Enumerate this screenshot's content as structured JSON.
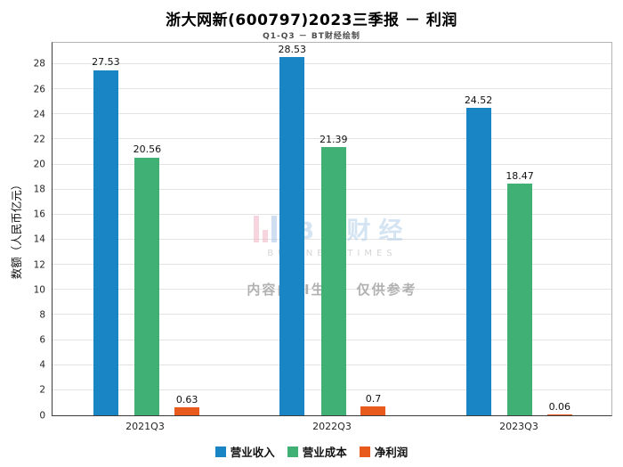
{
  "title": "浙大网新(600797)2023三季报 － 利润",
  "subtitle": "Q1-Q3 － BT财经绘制",
  "watermark": {
    "logo_text": "BT财经",
    "logo_sub": "BUSINESSTIMES",
    "disclaimer": "内容由AI生成，仅供参考"
  },
  "chart_data": {
    "type": "bar",
    "title": "浙大网新(600797)2023三季报 － 利润",
    "subtitle": "Q1-Q3 － BT财经绘制",
    "categories": [
      "2021Q3",
      "2022Q3",
      "2023Q3"
    ],
    "series": [
      {
        "name": "营业收入",
        "color": "#1a85c4",
        "values": [
          27.53,
          28.53,
          24.52
        ]
      },
      {
        "name": "营业成本",
        "color": "#41b075",
        "values": [
          20.56,
          21.39,
          18.47
        ]
      },
      {
        "name": "净利润",
        "color": "#e85a1c",
        "values": [
          0.63,
          0.7,
          0.06
        ]
      }
    ],
    "xlabel": "",
    "ylabel": "数额（人民币亿元）",
    "ylim": [
      0,
      29.7
    ],
    "yticks": [
      0,
      2,
      4,
      6,
      8,
      10,
      12,
      14,
      16,
      18,
      20,
      22,
      24,
      26,
      28
    ],
    "grid": true,
    "legend_position": "bottom"
  }
}
